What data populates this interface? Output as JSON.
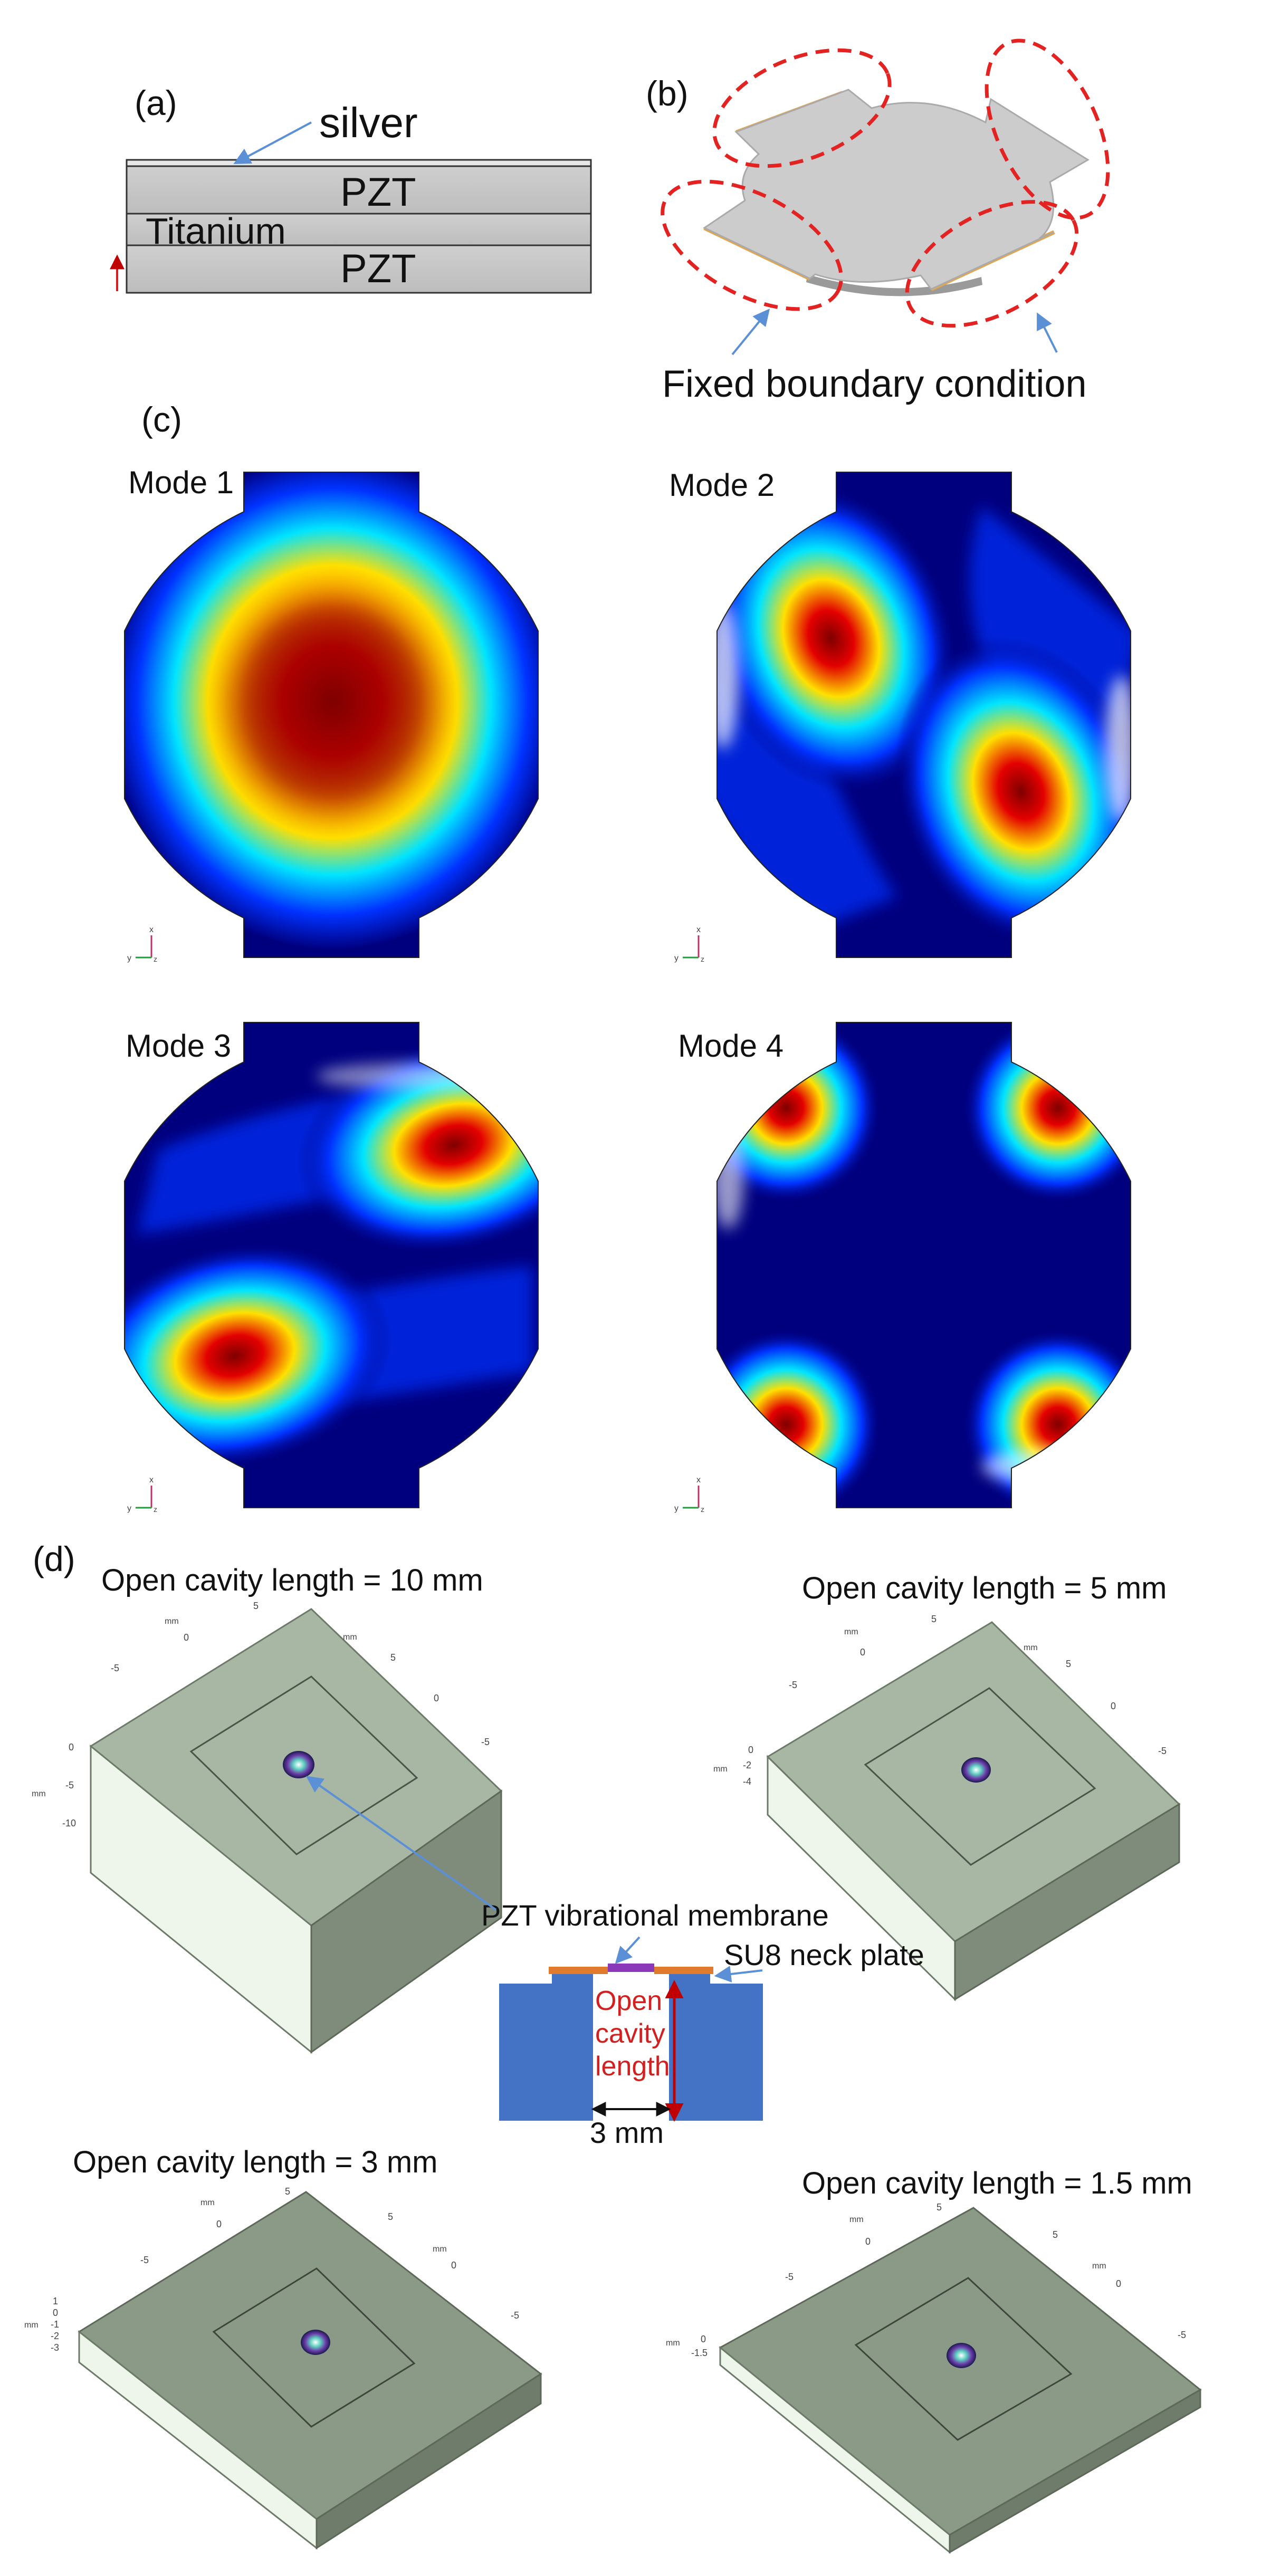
{
  "panel_a": {
    "tag": "(a)",
    "silver": "silver",
    "pzt_top": "PZT",
    "titanium": "Titanium",
    "pzt_bottom": "PZT"
  },
  "panel_b": {
    "tag": "(b)",
    "caption": "Fixed boundary condition"
  },
  "panel_c": {
    "tag": "(c)",
    "modes": [
      {
        "label": "Mode 1"
      },
      {
        "label": "Mode 2"
      },
      {
        "label": "Mode 3"
      },
      {
        "label": "Mode 4"
      }
    ],
    "axis": {
      "x": "x",
      "y": "y",
      "z": "z"
    }
  },
  "panel_d": {
    "tag": "(d)",
    "unit": "mm",
    "blocks": [
      {
        "title": "Open cavity length = 10 mm",
        "ticks_x": [
          "5",
          "0",
          "-5"
        ],
        "ticks_y": [
          "-5",
          "0",
          "5"
        ],
        "ticks_z": [
          "0",
          "-5",
          "-10"
        ]
      },
      {
        "title": "Open cavity length = 5 mm",
        "ticks_x": [
          "5",
          "0",
          "-5"
        ],
        "ticks_y": [
          "-5",
          "0",
          "5"
        ],
        "ticks_z": [
          "0",
          "-2",
          "-4"
        ]
      },
      {
        "title": "Open cavity length = 3 mm",
        "ticks_x": [
          "5",
          "0",
          "-5"
        ],
        "ticks_y": [
          "-5",
          "0",
          "5"
        ],
        "ticks_z": [
          "1",
          "0",
          "-1",
          "-2",
          "-3"
        ]
      },
      {
        "title": "Open cavity length = 1.5 mm",
        "ticks_x": [
          "5",
          "0",
          "-5"
        ],
        "ticks_y": [
          "-5",
          "0",
          "5"
        ],
        "ticks_z": [
          "0",
          "-1.5"
        ]
      }
    ],
    "center": {
      "membrane": "PZT vibrational membrane",
      "neck": "SU8 neck plate",
      "open_cavity": [
        "Open",
        "cavity",
        "length"
      ],
      "width": "3 mm"
    }
  },
  "colors": {
    "jet_dark": "#00007f",
    "jet_blue": "#0032ff",
    "jet_cyan": "#00e4ff",
    "jet_yellow": "#ffe000",
    "jet_red": "#e30000",
    "jet_darkred": "#7f0000",
    "layer_gray": "#c6c6c6",
    "block_green": "#9aaa9a",
    "cavity_blue": "#4472c4",
    "dashed_red": "#e32222",
    "arrow_blue": "#5b8fd6",
    "neck_orange": "#e07a2c",
    "membrane_purple": "#8a3ab9"
  }
}
